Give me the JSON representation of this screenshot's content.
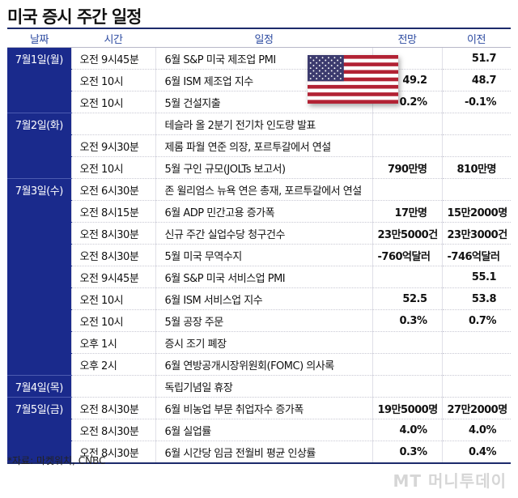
{
  "title": "미국 증시 주간 일정",
  "headers": {
    "date": "날짜",
    "time": "시간",
    "event": "일정",
    "forecast": "전망",
    "previous": "이전"
  },
  "rows": [
    {
      "date": "7월1일(월)",
      "time": "오전 9시45분",
      "event": "6월 S&P 미국 제조업 PMI",
      "forecast": "",
      "previous": "51.7"
    },
    {
      "date": "",
      "time": "오전 10시",
      "event": "6월 ISM 제조업 지수",
      "forecast": "49.2",
      "previous": "48.7"
    },
    {
      "date": "",
      "time": "오전 10시",
      "event": "5월 건설지출",
      "forecast": "0.2%",
      "previous": "-0.1%"
    },
    {
      "date": "7월2일(화)",
      "time": "",
      "event": "테슬라 올 2분기 전기차 인도량 발표",
      "forecast": "",
      "previous": ""
    },
    {
      "date": "",
      "time": "오전 9시30분",
      "event": "제롬 파월 연준 의장, 포르투갈에서 연설",
      "forecast": "",
      "previous": ""
    },
    {
      "date": "",
      "time": "오전 10시",
      "event": "5월 구인 규모(JOLTs 보고서)",
      "forecast": "790만명",
      "previous": "810만명"
    },
    {
      "date": "7월3일(수)",
      "time": "오전 6시30분",
      "event": "존 윌리엄스 뉴욕 연은 총재, 포르투갈에서 연설",
      "forecast": "",
      "previous": ""
    },
    {
      "date": "",
      "time": "오전 8시15분",
      "event": "6월 ADP 민간고용 증가폭",
      "forecast": "17만명",
      "previous": "15만2000명"
    },
    {
      "date": "",
      "time": "오전 8시30분",
      "event": "신규 주간 실업수당 청구건수",
      "forecast": "23만5000건",
      "previous": "23만3000건"
    },
    {
      "date": "",
      "time": "오전 8시30분",
      "event": "5월 미국 무역수지",
      "forecast": "-760억달러",
      "previous": "-746억달러"
    },
    {
      "date": "",
      "time": "오전 9시45분",
      "event": "6월 S&P 미국 서비스업 PMI",
      "forecast": "",
      "previous": "55.1"
    },
    {
      "date": "",
      "time": "오전 10시",
      "event": "6월 ISM 서비스업 지수",
      "forecast": "52.5",
      "previous": "53.8"
    },
    {
      "date": "",
      "time": "오전 10시",
      "event": "5월 공장 주문",
      "forecast": "0.3%",
      "previous": "0.7%"
    },
    {
      "date": "",
      "time": "오후 1시",
      "event": "증시 조기 폐장",
      "forecast": "",
      "previous": ""
    },
    {
      "date": "",
      "time": "오후 2시",
      "event": "6월 연방공개시장위원회(FOMC) 의사록",
      "forecast": "",
      "previous": ""
    },
    {
      "date": "7월4일(목)",
      "time": "",
      "event": "독립기념일 휴장",
      "forecast": "",
      "previous": ""
    },
    {
      "date": "7월5일(금)",
      "time": "오전 8시30분",
      "event": "6월 비농업 부문 취업자수 증가폭",
      "forecast": "19만5000명",
      "previous": "27만2000명"
    },
    {
      "date": "",
      "time": "오전 8시30분",
      "event": "6월 실업률",
      "forecast": "4.0%",
      "previous": "4.0%"
    },
    {
      "date": "",
      "time": "오전 8시30분",
      "event": "6월 시간당 임금 전월비 평균 인상률",
      "forecast": "0.3%",
      "previous": "0.4%"
    }
  ],
  "source": "*자료: 마켓워치, CNBC",
  "watermark": "MT 머니투데이",
  "colors": {
    "header_text": "#2c4aa0",
    "date_bg": "#1a2a8c",
    "rule": "#1c2a6b"
  },
  "flag_icon": "us-flag"
}
